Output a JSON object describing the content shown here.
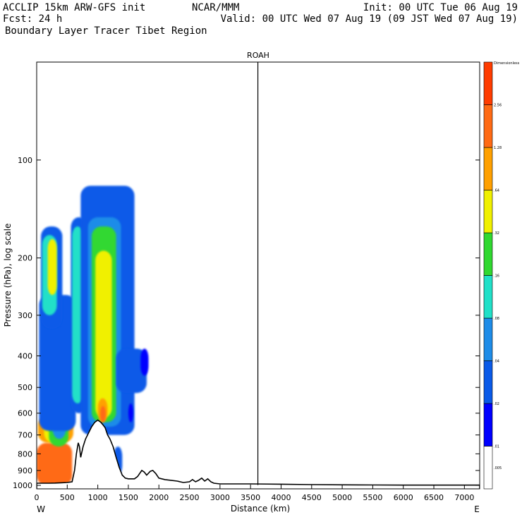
{
  "header": {
    "model": "ACCLIP 15km ARW-GFS init",
    "org": "NCAR/MMM",
    "init": "Init: 00 UTC Tue 06 Aug 19",
    "fcst": "Fcst:   24 h",
    "valid": "Valid: 00 UTC Wed 07 Aug 19 (09 JST Wed 07 Aug 19)",
    "title": "Boundary Layer Tracer  Tibet Region"
  },
  "chart_data": {
    "type": "heatmap",
    "title": "ROAH",
    "xlabel": "Distance (km)",
    "ylabel": "Pressure (hPa), log scale",
    "x_left_label": "W",
    "x_right_label": "E",
    "xlim": [
      0,
      7250
    ],
    "ylim": [
      1025,
      50
    ],
    "log_y": true,
    "x_ticks": [
      0,
      500,
      1000,
      1500,
      2000,
      2500,
      3000,
      3500,
      4000,
      4500,
      5000,
      5500,
      6000,
      6500,
      7000
    ],
    "y_ticks": [
      100,
      200,
      300,
      400,
      500,
      600,
      700,
      800,
      900,
      1000
    ],
    "vertical_marker_x": 3620,
    "colorbar": {
      "levels": [
        ".005",
        ".01",
        ".02",
        ".04",
        ".08",
        ".16",
        ".32",
        ".64",
        "1.28",
        "2.56",
        "Dimensionless"
      ],
      "colors": [
        "#ffffff",
        "#0000ff",
        "#0a5ae8",
        "#1e8ce8",
        "#20e0c8",
        "#30d830",
        "#f0f000",
        "#ffa000",
        "#ff6a14",
        "#ff3c00"
      ]
    },
    "terrain_km_hpa": [
      [
        0,
        985
      ],
      [
        100,
        985
      ],
      [
        200,
        985
      ],
      [
        300,
        984
      ],
      [
        400,
        982
      ],
      [
        500,
        980
      ],
      [
        580,
        975
      ],
      [
        620,
        900
      ],
      [
        650,
        800
      ],
      [
        680,
        740
      ],
      [
        700,
        760
      ],
      [
        720,
        820
      ],
      [
        760,
        760
      ],
      [
        800,
        720
      ],
      [
        850,
        690
      ],
      [
        900,
        660
      ],
      [
        950,
        640
      ],
      [
        1000,
        630
      ],
      [
        1050,
        640
      ],
      [
        1080,
        650
      ],
      [
        1120,
        665
      ],
      [
        1160,
        700
      ],
      [
        1200,
        720
      ],
      [
        1250,
        760
      ],
      [
        1300,
        820
      ],
      [
        1350,
        880
      ],
      [
        1400,
        930
      ],
      [
        1450,
        950
      ],
      [
        1500,
        955
      ],
      [
        1600,
        955
      ],
      [
        1650,
        940
      ],
      [
        1720,
        900
      ],
      [
        1760,
        910
      ],
      [
        1800,
        930
      ],
      [
        1860,
        905
      ],
      [
        1900,
        900
      ],
      [
        1950,
        920
      ],
      [
        2000,
        950
      ],
      [
        2100,
        960
      ],
      [
        2200,
        965
      ],
      [
        2300,
        970
      ],
      [
        2400,
        980
      ],
      [
        2500,
        975
      ],
      [
        2550,
        960
      ],
      [
        2600,
        975
      ],
      [
        2650,
        965
      ],
      [
        2700,
        950
      ],
      [
        2750,
        970
      ],
      [
        2800,
        955
      ],
      [
        2850,
        975
      ],
      [
        2900,
        985
      ],
      [
        3000,
        990
      ],
      [
        3500,
        990
      ],
      [
        4000,
        992
      ],
      [
        4500,
        995
      ],
      [
        5000,
        996
      ],
      [
        5500,
        997
      ],
      [
        6000,
        998
      ],
      [
        6500,
        998
      ],
      [
        7250,
        998
      ]
    ],
    "tracer_blobs": [
      {
        "x": [
          0,
          580
        ],
        "p": [
          1000,
          740
        ],
        "level": 7
      },
      {
        "x": [
          20,
          600
        ],
        "p": [
          740,
          610
        ],
        "level": 6
      },
      {
        "x": [
          120,
          420
        ],
        "p": [
          740,
          480
        ],
        "level": 5
      },
      {
        "x": [
          200,
          520
        ],
        "p": [
          760,
          420
        ],
        "level": 4
      },
      {
        "x": [
          260,
          480
        ],
        "p": [
          720,
          480
        ],
        "level": 2
      },
      {
        "x": [
          40,
          640
        ],
        "p": [
          680,
          260
        ],
        "level": 1
      },
      {
        "x": [
          70,
          420
        ],
        "p": [
          330,
          160
        ],
        "level": 1
      },
      {
        "x": [
          90,
          330
        ],
        "p": [
          300,
          170
        ],
        "level": 3
      },
      {
        "x": [
          180,
          330
        ],
        "p": [
          260,
          175
        ],
        "level": 5
      },
      {
        "x": [
          560,
          820
        ],
        "p": [
          600,
          150
        ],
        "level": 1
      },
      {
        "x": [
          580,
          760
        ],
        "p": [
          560,
          160
        ],
        "level": 3
      },
      {
        "x": [
          720,
          1600
        ],
        "p": [
          700,
          120
        ],
        "level": 1
      },
      {
        "x": [
          840,
          1380
        ],
        "p": [
          660,
          150
        ],
        "level": 2
      },
      {
        "x": [
          900,
          1300
        ],
        "p": [
          640,
          160
        ],
        "level": 4
      },
      {
        "x": [
          960,
          1230
        ],
        "p": [
          620,
          190
        ],
        "level": 5
      },
      {
        "x": [
          1000,
          1160
        ],
        "p": [
          640,
          540
        ],
        "level": 6
      },
      {
        "x": [
          1040,
          1130
        ],
        "p": [
          640,
          570
        ],
        "level": 7
      },
      {
        "x": [
          1300,
          1800
        ],
        "p": [
          520,
          380
        ],
        "level": 1
      },
      {
        "x": [
          1700,
          1830
        ],
        "p": [
          460,
          380
        ],
        "level": 0
      },
      {
        "x": [
          1260,
          1400
        ],
        "p": [
          930,
          760
        ],
        "level": 1
      },
      {
        "x": [
          1500,
          1580
        ],
        "p": [
          640,
          560
        ],
        "level": 0
      }
    ]
  }
}
